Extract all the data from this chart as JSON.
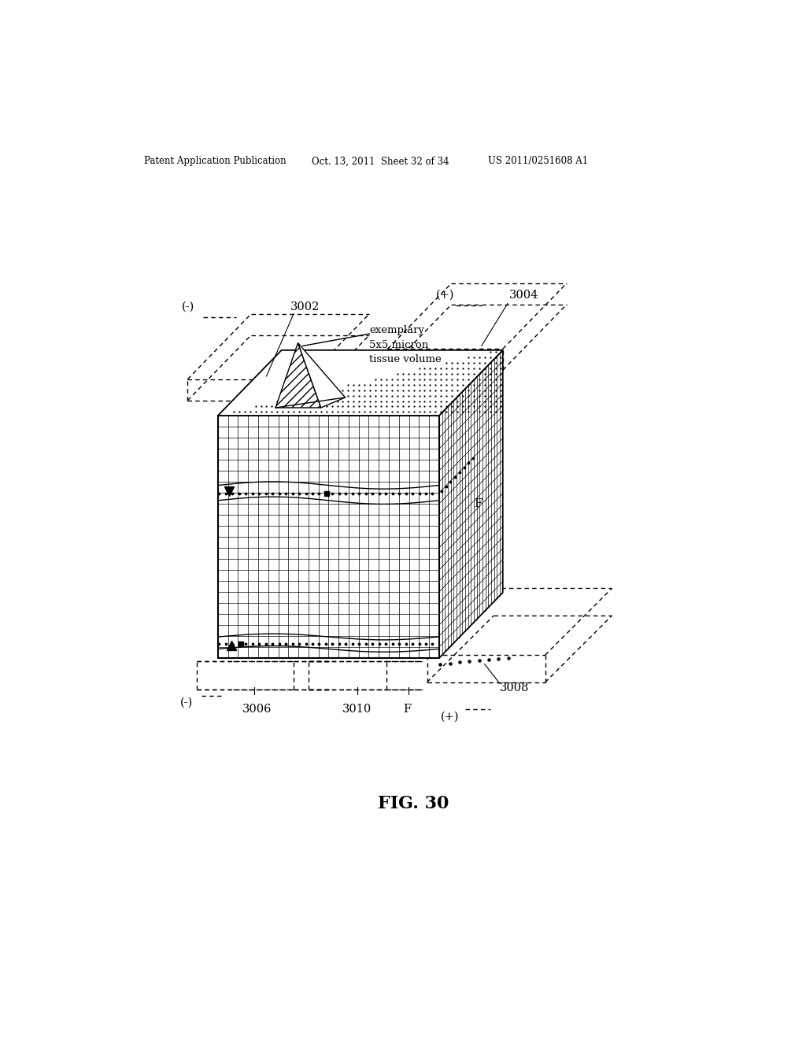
{
  "title": "FIG. 30",
  "header_left": "Patent Application Publication",
  "header_mid": "Oct. 13, 2011  Sheet 32 of 34",
  "header_right": "US 2011/0251608 A1",
  "label_3002": "3002",
  "label_3004": "3004",
  "label_3006": "3006",
  "label_3008": "3008",
  "label_3010": "3010",
  "label_F_side": "F",
  "label_F_bottom": "F",
  "label_neg_top": "(-)",
  "label_pos_top": "(+)",
  "label_neg_bot": "(-)",
  "label_pos_bot": "(+)",
  "annotation": "exemplary\n5x5 micron\ntissue volume",
  "background": "#ffffff"
}
